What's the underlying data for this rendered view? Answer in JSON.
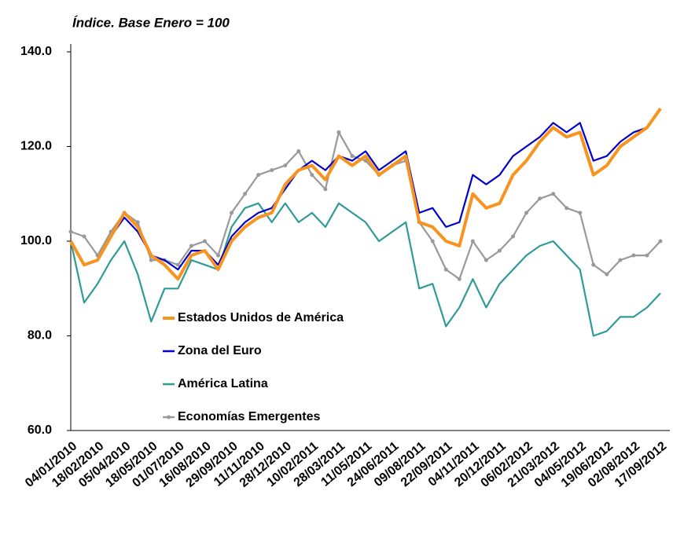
{
  "chart_data": {
    "type": "line",
    "title": "Índice. Base Enero = 100",
    "categories": [
      "04/01/2010",
      null,
      "18/02/2010",
      null,
      "05/04/2010",
      null,
      "18/05/2010",
      null,
      "01/07/2010",
      null,
      "16/08/2010",
      null,
      "29/09/2010",
      null,
      "11/11/2010",
      null,
      "28/12/2010",
      null,
      "10/02/2011",
      null,
      "28/03/2011",
      null,
      "11/05/2011",
      null,
      "24/06/2011",
      null,
      "09/08/2011",
      null,
      "22/09/2011",
      null,
      "04/11/2011",
      null,
      "20/12/2011",
      null,
      "06/02/2012",
      null,
      "21/03/2012",
      null,
      "04/05/2012",
      null,
      "19/06/2012",
      null,
      "02/08/2012",
      null,
      "17/09/2012"
    ],
    "series": [
      {
        "name": "Estados Unidos de América",
        "color": "#f7931e",
        "values": [
          100,
          95,
          96,
          101,
          106,
          103,
          97,
          95,
          92,
          97,
          98,
          94,
          100,
          103,
          105,
          106,
          112,
          115,
          116,
          113,
          118,
          116,
          118,
          114,
          116,
          118,
          104,
          103,
          100,
          99,
          110,
          107,
          108,
          114,
          117,
          121,
          124,
          122,
          123,
          114,
          116,
          120,
          122,
          124,
          128
        ]
      },
      {
        "name": "Zona del Euro",
        "color": "#0000cc",
        "values": [
          100,
          95,
          96,
          101,
          105,
          102,
          97,
          96,
          94,
          98,
          98,
          95,
          101,
          104,
          106,
          107,
          111,
          115,
          117,
          115,
          118,
          117,
          119,
          115,
          117,
          119,
          106,
          107,
          103,
          104,
          114,
          112,
          114,
          118,
          120,
          122,
          125,
          123,
          125,
          117,
          118,
          121,
          123,
          124,
          128
        ]
      },
      {
        "name": "América Latina",
        "color": "#2e9b96",
        "values": [
          100,
          87,
          91,
          96,
          100,
          93,
          83,
          90,
          90,
          96,
          95,
          94,
          103,
          107,
          108,
          104,
          108,
          104,
          106,
          103,
          108,
          106,
          104,
          100,
          102,
          104,
          90,
          91,
          82,
          86,
          92,
          86,
          91,
          94,
          97,
          99,
          100,
          97,
          94,
          80,
          81,
          84,
          84,
          86,
          89
        ]
      },
      {
        "name": "Economías Emergentes",
        "color": "#999999",
        "values": [
          102,
          101,
          97,
          102,
          106,
          104,
          96,
          96,
          95,
          99,
          100,
          97,
          106,
          110,
          114,
          115,
          116,
          119,
          114,
          111,
          123,
          118,
          117,
          114,
          116,
          117,
          104,
          100,
          94,
          92,
          100,
          96,
          98,
          101,
          106,
          109,
          110,
          107,
          106,
          95,
          93,
          96,
          97,
          97,
          100
        ]
      }
    ],
    "ylim": [
      60,
      140
    ],
    "yticks": [
      {
        "value": 60,
        "label": "60.0"
      },
      {
        "value": 80,
        "label": "80.0"
      },
      {
        "value": 100,
        "label": "100.0"
      },
      {
        "value": 120,
        "label": "120.0"
      },
      {
        "value": 140,
        "label": "140.0"
      }
    ],
    "grid": false
  }
}
